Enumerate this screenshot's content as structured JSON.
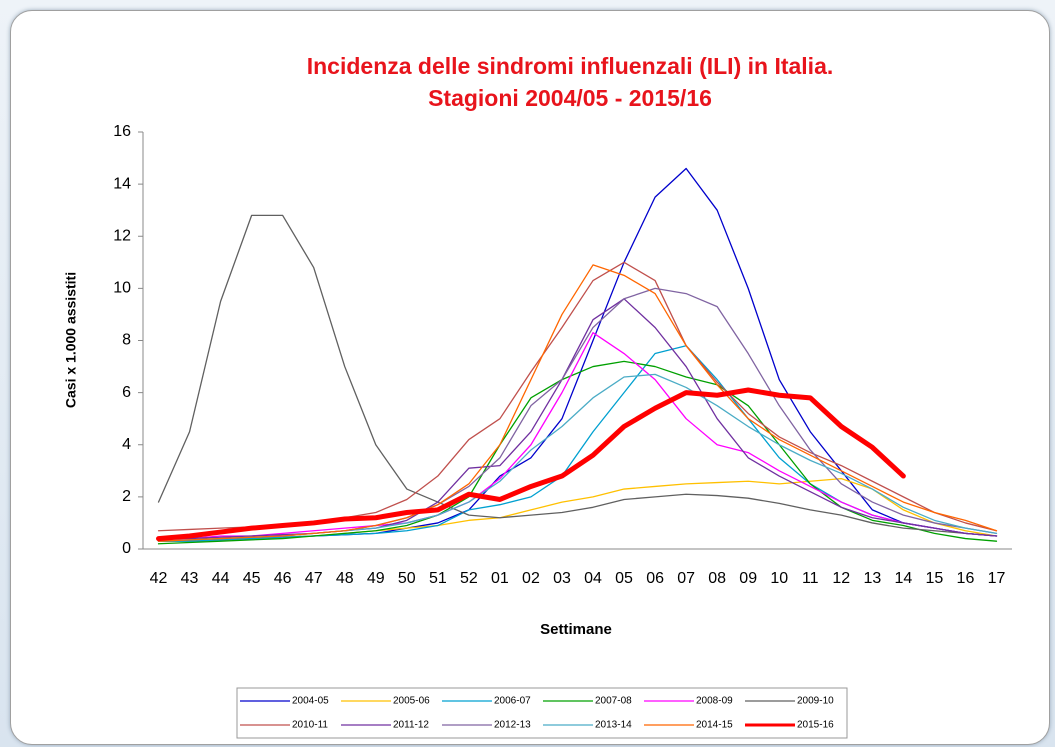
{
  "chart_data": {
    "type": "line",
    "title": [
      "Incidenza delle sindromi influenzali (ILI) in Italia.",
      "Stagioni 2004/05 - 2015/16"
    ],
    "xlabel": "Settimane",
    "ylabel": "Casi x 1.000 assistiti",
    "categories": [
      "42",
      "43",
      "44",
      "45",
      "46",
      "47",
      "48",
      "49",
      "50",
      "51",
      "52",
      "01",
      "02",
      "03",
      "04",
      "05",
      "06",
      "07",
      "08",
      "09",
      "10",
      "11",
      "12",
      "13",
      "14",
      "15",
      "16",
      "17"
    ],
    "ylim": [
      0,
      16
    ],
    "yticks": [
      0,
      2,
      4,
      6,
      8,
      10,
      12,
      14,
      16
    ],
    "grid": false,
    "series": [
      {
        "name": "2004-05",
        "color": "#0000cc",
        "width": 1.3,
        "values": [
          0.3,
          0.3,
          0.35,
          0.4,
          0.45,
          0.5,
          0.55,
          0.6,
          0.8,
          1.0,
          1.5,
          2.8,
          3.5,
          5.0,
          8.0,
          11.0,
          13.5,
          14.6,
          13.0,
          10.0,
          6.5,
          4.5,
          3.0,
          1.5,
          1.0,
          0.8,
          0.6,
          0.5
        ]
      },
      {
        "name": "2005-06",
        "color": "#ffc000",
        "width": 1.3,
        "values": [
          0.3,
          0.3,
          0.35,
          0.4,
          0.45,
          0.5,
          0.6,
          0.7,
          0.8,
          0.9,
          1.1,
          1.2,
          1.5,
          1.8,
          2.0,
          2.3,
          2.4,
          2.5,
          2.55,
          2.6,
          2.5,
          2.6,
          2.7,
          2.3,
          1.5,
          1.0,
          0.7,
          0.5
        ]
      },
      {
        "name": "2006-07",
        "color": "#00a0d0",
        "width": 1.3,
        "values": [
          0.3,
          0.3,
          0.35,
          0.4,
          0.45,
          0.5,
          0.55,
          0.6,
          0.7,
          0.9,
          1.5,
          1.7,
          2.0,
          2.8,
          4.5,
          6.0,
          7.5,
          7.8,
          6.5,
          5.0,
          3.5,
          2.5,
          1.8,
          1.3,
          1.0,
          0.8,
          0.6,
          0.5
        ]
      },
      {
        "name": "2007-08",
        "color": "#00a000",
        "width": 1.3,
        "values": [
          0.2,
          0.25,
          0.3,
          0.35,
          0.4,
          0.5,
          0.6,
          0.7,
          0.9,
          1.3,
          2.0,
          4.0,
          5.8,
          6.5,
          7.0,
          7.2,
          7.0,
          6.6,
          6.3,
          5.5,
          4.0,
          2.5,
          1.6,
          1.1,
          0.9,
          0.6,
          0.4,
          0.3
        ]
      },
      {
        "name": "2008-09",
        "color": "#ff00ff",
        "width": 1.3,
        "values": [
          0.4,
          0.4,
          0.5,
          0.5,
          0.6,
          0.7,
          0.8,
          0.9,
          1.0,
          1.3,
          1.8,
          2.7,
          4.0,
          6.0,
          8.3,
          7.5,
          6.5,
          5.0,
          4.0,
          3.7,
          3.0,
          2.4,
          1.8,
          1.3,
          1.0,
          0.8,
          0.6,
          0.5
        ]
      },
      {
        "name": "2009-10",
        "color": "#606060",
        "width": 1.3,
        "values": [
          1.8,
          4.5,
          9.5,
          12.8,
          12.8,
          10.8,
          7.0,
          4.0,
          2.3,
          1.8,
          1.3,
          1.2,
          1.3,
          1.4,
          1.6,
          1.9,
          2.0,
          2.1,
          2.05,
          1.95,
          1.75,
          1.5,
          1.3,
          1.0,
          0.8,
          0.7,
          0.6,
          0.5
        ]
      },
      {
        "name": "2010-11",
        "color": "#c0504d",
        "width": 1.3,
        "values": [
          0.7,
          0.75,
          0.8,
          0.85,
          0.95,
          1.05,
          1.2,
          1.4,
          1.9,
          2.8,
          4.2,
          5.0,
          6.8,
          8.5,
          10.3,
          11.0,
          10.3,
          7.8,
          6.4,
          5.2,
          4.3,
          3.7,
          3.2,
          2.6,
          2.0,
          1.4,
          1.0,
          0.7
        ]
      },
      {
        "name": "2011-12",
        "color": "#7030a0",
        "width": 1.3,
        "values": [
          0.4,
          0.4,
          0.45,
          0.5,
          0.55,
          0.6,
          0.7,
          0.8,
          1.1,
          1.8,
          3.1,
          3.2,
          4.5,
          6.5,
          8.8,
          9.6,
          8.5,
          7.0,
          5.0,
          3.5,
          2.8,
          2.2,
          1.6,
          1.2,
          1.0,
          0.8,
          0.6,
          0.5
        ]
      },
      {
        "name": "2012-13",
        "color": "#8064a2",
        "width": 1.3,
        "values": [
          0.3,
          0.35,
          0.4,
          0.45,
          0.5,
          0.6,
          0.7,
          0.9,
          1.2,
          1.7,
          2.4,
          3.5,
          5.5,
          6.5,
          8.5,
          9.6,
          10.0,
          9.8,
          9.3,
          7.5,
          5.5,
          3.8,
          2.5,
          1.8,
          1.3,
          1.0,
          0.8,
          0.6
        ]
      },
      {
        "name": "2013-14",
        "color": "#4bacc6",
        "width": 1.3,
        "values": [
          0.3,
          0.35,
          0.4,
          0.45,
          0.5,
          0.6,
          0.7,
          0.8,
          1.0,
          1.3,
          1.8,
          2.6,
          3.8,
          4.7,
          5.8,
          6.6,
          6.7,
          6.2,
          5.5,
          4.7,
          4.0,
          3.4,
          2.9,
          2.3,
          1.6,
          1.1,
          0.8,
          0.6
        ]
      },
      {
        "name": "2014-15",
        "color": "#ff6600",
        "width": 1.3,
        "values": [
          0.3,
          0.35,
          0.4,
          0.45,
          0.5,
          0.6,
          0.7,
          0.9,
          1.2,
          1.7,
          2.5,
          4.0,
          6.5,
          9.0,
          10.9,
          10.5,
          9.8,
          7.8,
          6.3,
          5.0,
          4.2,
          3.6,
          3.0,
          2.4,
          1.8,
          1.4,
          1.1,
          0.7
        ]
      },
      {
        "name": "2015-16",
        "color": "#ff0000",
        "width": 5,
        "values": [
          0.4,
          0.5,
          0.65,
          0.8,
          0.9,
          1.0,
          1.15,
          1.2,
          1.4,
          1.5,
          2.1,
          1.9,
          2.4,
          2.8,
          3.6,
          4.7,
          5.4,
          6.0,
          5.9,
          6.1,
          5.9,
          5.8,
          4.7,
          3.9,
          2.8,
          null,
          null,
          null
        ]
      }
    ]
  }
}
